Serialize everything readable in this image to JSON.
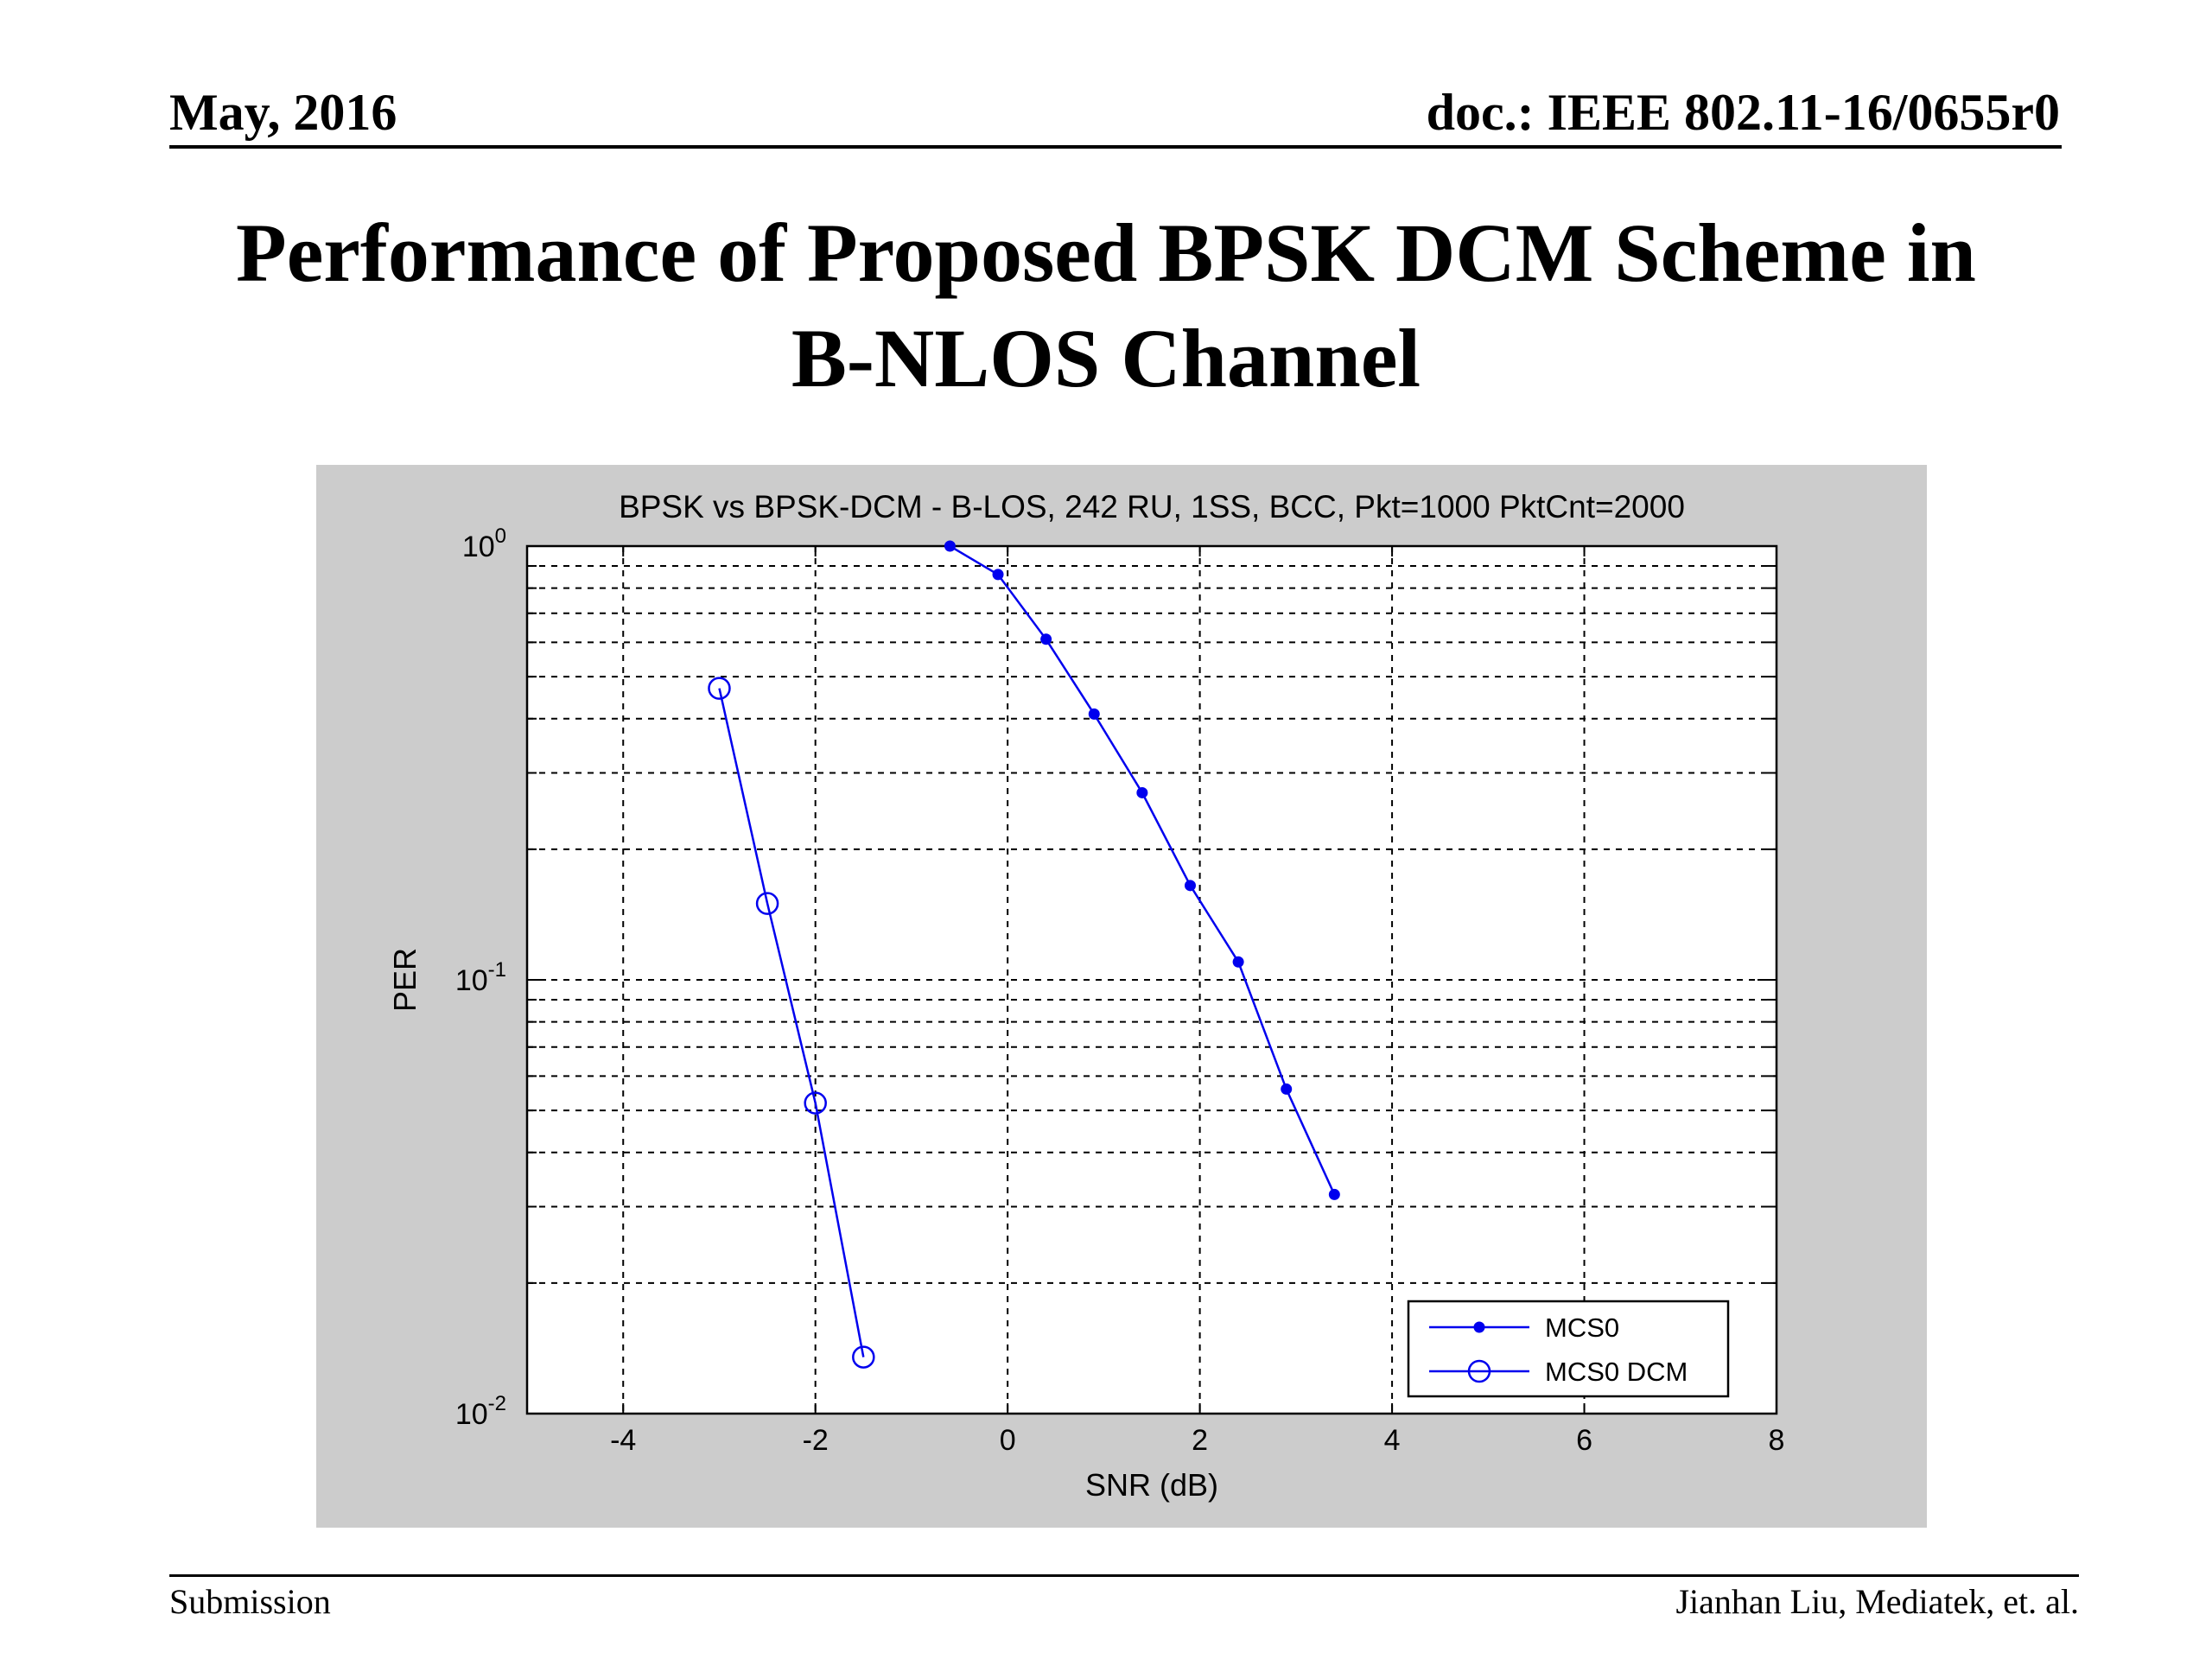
{
  "header": {
    "date": "May, 2016",
    "doc_id": "doc.: IEEE 802.11-16/0655r0"
  },
  "slide": {
    "title_line1": "Performance of Proposed BPSK DCM Scheme in",
    "title_line2": "B-NLOS Channel"
  },
  "footer": {
    "left": "Submission",
    "right": "Jianhan Liu,  Mediatek, et. al."
  },
  "chart_data": {
    "type": "line",
    "title": "BPSK vs BPSK-DCM - B-LOS, 242 RU, 1SS, BCC, Pkt=1000 PktCnt=2000",
    "xlabel": "SNR (dB)",
    "ylabel": "PER",
    "xlim": [
      -5,
      8
    ],
    "ylim": [
      0.01,
      1
    ],
    "yscale": "log",
    "grid": true,
    "x_ticks": [
      -4,
      -2,
      0,
      2,
      4,
      6,
      8
    ],
    "y_ticks": [
      {
        "mantissa": "10",
        "exp": "0",
        "value": 1
      },
      {
        "mantissa": "10",
        "exp": "-1",
        "value": 0.1
      },
      {
        "mantissa": "10",
        "exp": "-2",
        "value": 0.01
      }
    ],
    "legend_position": "bottom-right",
    "line_color": "#0000ee",
    "series": [
      {
        "name": "MCS0",
        "marker": "dot",
        "x": [
          -0.6,
          -0.1,
          0.4,
          0.9,
          1.4,
          1.9,
          2.4,
          2.9,
          3.4
        ],
        "y": [
          1.0,
          0.86,
          0.61,
          0.41,
          0.27,
          0.165,
          0.11,
          0.056,
          0.032
        ]
      },
      {
        "name": "MCS0 DCM",
        "marker": "circle",
        "x": [
          -3.0,
          -2.5,
          -2.0,
          -1.5
        ],
        "y": [
          0.47,
          0.15,
          0.052,
          0.0135
        ]
      }
    ]
  }
}
